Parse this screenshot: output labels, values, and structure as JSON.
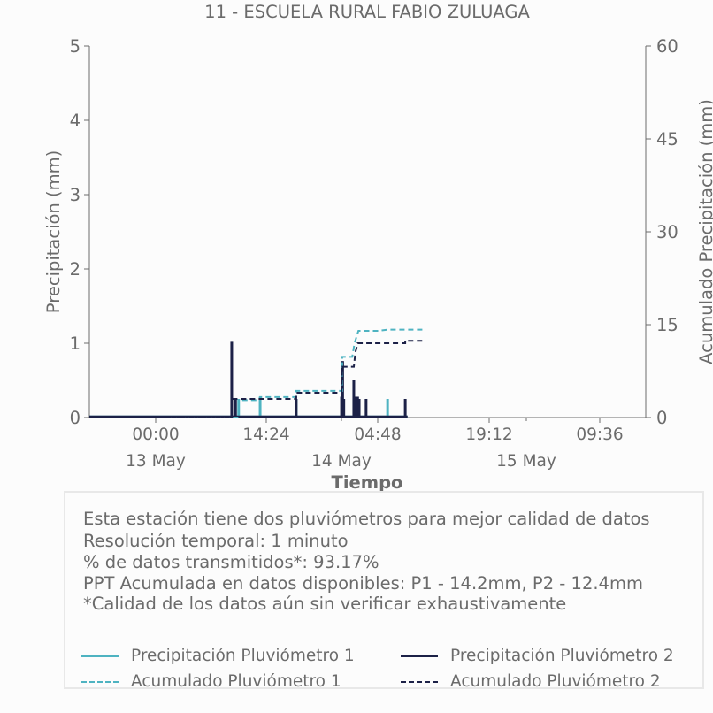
{
  "chart_data": {
    "type": "line",
    "title": "11 - ESCUELA RURAL FABIO ZULUAGA",
    "xlabel": "Tiempo",
    "ylabel": "Precipitación (mm)",
    "y2label": "Acumulado Precipitación (mm)",
    "ylim": [
      0,
      5
    ],
    "y2lim": [
      0,
      60
    ],
    "yticks": [
      "0",
      "1",
      "2",
      "3",
      "4",
      "5"
    ],
    "y2ticks": [
      "0",
      "15",
      "30",
      "45",
      "60"
    ],
    "xticks": [
      {
        "time": "00:00",
        "date": "13 May"
      },
      {
        "time": "14:24",
        "date": "14 May"
      },
      {
        "time": "04:48",
        "date": ""
      },
      {
        "time": "19:12",
        "date": "15 May"
      },
      {
        "time": "09:36",
        "date": ""
      }
    ],
    "colors": {
      "p1": "#4eb3c1",
      "p2": "#1c2147",
      "axis": "#6b6b6b"
    },
    "series": [
      {
        "name": "Precipitación Pluviómetro 1",
        "style": "solid",
        "color": "#4eb3c1",
        "bars": [
          [
            34.8,
            0.25
          ],
          [
            37.6,
            0.28
          ],
          [
            42.3,
            0.25
          ],
          [
            48.3,
            0.33
          ],
          [
            49.9,
            0.25
          ],
          [
            54.2,
            0.25
          ]
        ]
      },
      {
        "name": "Precipitación Pluviómetro 2",
        "style": "solid",
        "color": "#1c2147",
        "bars": [
          [
            33.9,
            1.02
          ],
          [
            34.4,
            0.25
          ],
          [
            42.3,
            0.25
          ],
          [
            48.2,
            0.28
          ],
          [
            48.35,
            0.76
          ],
          [
            48.5,
            0.25
          ],
          [
            49.8,
            0.51
          ],
          [
            50.0,
            0.28
          ],
          [
            50.3,
            0.28
          ],
          [
            50.5,
            0.25
          ],
          [
            51.4,
            0.25
          ],
          [
            56.5,
            0.25
          ]
        ]
      },
      {
        "name": "Acumulado Pluviómetro 1",
        "style": "dashed",
        "color": "#4eb3c1",
        "points": [
          [
            26,
            0
          ],
          [
            34.8,
            0
          ],
          [
            34.8,
            2.8
          ],
          [
            37.6,
            2.8
          ],
          [
            37.6,
            3.3
          ],
          [
            42.3,
            3.3
          ],
          [
            42.3,
            4.3
          ],
          [
            48.3,
            4.3
          ],
          [
            48.3,
            9.8
          ],
          [
            49.6,
            9.8
          ],
          [
            49.9,
            12
          ],
          [
            50.4,
            14
          ],
          [
            53,
            14
          ],
          [
            54.2,
            14.2
          ],
          [
            59,
            14.2
          ]
        ]
      },
      {
        "name": "Acumulado Pluviómetro 2",
        "style": "dashed",
        "color": "#1c2147",
        "points": [
          [
            26,
            0
          ],
          [
            33.9,
            0
          ],
          [
            33.9,
            3
          ],
          [
            42.3,
            3
          ],
          [
            42.3,
            4
          ],
          [
            48.2,
            4
          ],
          [
            48.3,
            8.2
          ],
          [
            49.8,
            8.2
          ],
          [
            50.0,
            10.5
          ],
          [
            50.3,
            12
          ],
          [
            56.5,
            12
          ],
          [
            56.5,
            12.4
          ],
          [
            59,
            12.4
          ]
        ]
      }
    ],
    "xrange_hours": [
      26,
      59
    ],
    "xtick_hours": [
      24,
      38.4,
      52.8,
      67.2,
      81.6
    ]
  },
  "notes": [
    "Esta estación tiene dos pluviómetros para mejor calidad de datos",
    "Resolución temporal: 1 minuto",
    "% de datos transmitidos*: 93.17%",
    "PPT Acumulada en datos disponibles: P1 - 14.2mm, P2 - 12.4mm",
    "*Calidad de los datos aún sin verificar exhaustivamente"
  ],
  "legend": {
    "p1_rain": "Precipitación Pluviómetro 1",
    "p2_rain": "Precipitación Pluviómetro 2",
    "p1_cum": "Acumulado Pluviómetro 1",
    "p2_cum": "Acumulado Pluviómetro 2"
  }
}
